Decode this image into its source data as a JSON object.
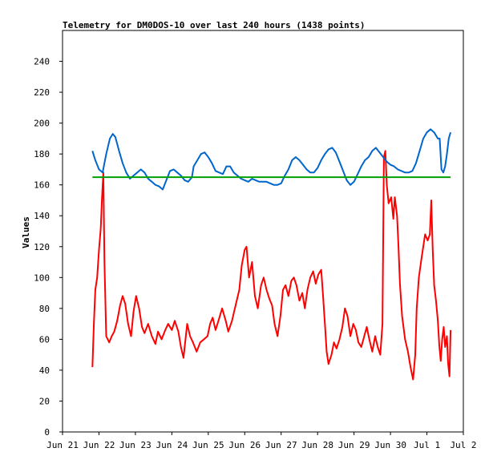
{
  "chart_data": {
    "type": "line",
    "title": "Telemetry for DM0DOS-10 over last 240 hours (1438 points)",
    "ylabel": "Values",
    "xlabel": "",
    "ylim": [
      0,
      260
    ],
    "xlim": [
      0,
      11
    ],
    "yticks": [
      0,
      20,
      40,
      60,
      80,
      100,
      120,
      140,
      160,
      180,
      200,
      220,
      240
    ],
    "xticks": [
      {
        "x": 0,
        "label": "Jun 21"
      },
      {
        "x": 1,
        "label": "Jun 22"
      },
      {
        "x": 2,
        "label": "Jun 23"
      },
      {
        "x": 3,
        "label": "Jun 24"
      },
      {
        "x": 4,
        "label": "Jun 25"
      },
      {
        "x": 5,
        "label": "Jun 26"
      },
      {
        "x": 6,
        "label": "Jun 27"
      },
      {
        "x": 7,
        "label": "Jun 28"
      },
      {
        "x": 8,
        "label": "Jun 29"
      },
      {
        "x": 9,
        "label": "Jun 30"
      },
      {
        "x": 10,
        "label": "Jul 1"
      },
      {
        "x": 11,
        "label": "Jul 2"
      }
    ],
    "grid": false,
    "series": [
      {
        "color": "#ff0000",
        "points": [
          [
            0.82,
            42
          ],
          [
            0.86,
            70
          ],
          [
            0.9,
            92
          ],
          [
            0.95,
            100
          ],
          [
            1.0,
            118
          ],
          [
            1.05,
            132
          ],
          [
            1.08,
            150
          ],
          [
            1.12,
            168
          ],
          [
            1.15,
            110
          ],
          [
            1.2,
            62
          ],
          [
            1.28,
            58
          ],
          [
            1.35,
            62
          ],
          [
            1.42,
            65
          ],
          [
            1.5,
            72
          ],
          [
            1.58,
            82
          ],
          [
            1.65,
            88
          ],
          [
            1.72,
            83
          ],
          [
            1.8,
            70
          ],
          [
            1.88,
            62
          ],
          [
            1.95,
            78
          ],
          [
            2.02,
            88
          ],
          [
            2.1,
            80
          ],
          [
            2.18,
            68
          ],
          [
            2.25,
            64
          ],
          [
            2.35,
            70
          ],
          [
            2.45,
            62
          ],
          [
            2.55,
            57
          ],
          [
            2.62,
            65
          ],
          [
            2.72,
            60
          ],
          [
            2.82,
            66
          ],
          [
            2.9,
            70
          ],
          [
            3.0,
            66
          ],
          [
            3.08,
            72
          ],
          [
            3.18,
            65
          ],
          [
            3.25,
            55
          ],
          [
            3.32,
            48
          ],
          [
            3.42,
            70
          ],
          [
            3.5,
            62
          ],
          [
            3.58,
            58
          ],
          [
            3.68,
            52
          ],
          [
            3.78,
            58
          ],
          [
            3.88,
            60
          ],
          [
            3.98,
            62
          ],
          [
            4.05,
            70
          ],
          [
            4.12,
            74
          ],
          [
            4.2,
            66
          ],
          [
            4.28,
            72
          ],
          [
            4.38,
            80
          ],
          [
            4.48,
            72
          ],
          [
            4.55,
            65
          ],
          [
            4.65,
            72
          ],
          [
            4.75,
            82
          ],
          [
            4.85,
            92
          ],
          [
            4.92,
            108
          ],
          [
            5.0,
            118
          ],
          [
            5.05,
            120
          ],
          [
            5.12,
            100
          ],
          [
            5.2,
            110
          ],
          [
            5.28,
            88
          ],
          [
            5.36,
            80
          ],
          [
            5.45,
            95
          ],
          [
            5.52,
            100
          ],
          [
            5.6,
            92
          ],
          [
            5.68,
            86
          ],
          [
            5.75,
            82
          ],
          [
            5.82,
            70
          ],
          [
            5.9,
            62
          ],
          [
            5.98,
            75
          ],
          [
            6.05,
            92
          ],
          [
            6.12,
            95
          ],
          [
            6.2,
            88
          ],
          [
            6.28,
            98
          ],
          [
            6.35,
            100
          ],
          [
            6.42,
            95
          ],
          [
            6.5,
            85
          ],
          [
            6.58,
            90
          ],
          [
            6.65,
            80
          ],
          [
            6.72,
            92
          ],
          [
            6.8,
            100
          ],
          [
            6.88,
            104
          ],
          [
            6.95,
            96
          ],
          [
            7.02,
            102
          ],
          [
            7.1,
            105
          ],
          [
            7.15,
            88
          ],
          [
            7.2,
            70
          ],
          [
            7.25,
            52
          ],
          [
            7.3,
            44
          ],
          [
            7.38,
            50
          ],
          [
            7.45,
            58
          ],
          [
            7.52,
            54
          ],
          [
            7.6,
            60
          ],
          [
            7.68,
            68
          ],
          [
            7.75,
            80
          ],
          [
            7.82,
            75
          ],
          [
            7.9,
            62
          ],
          [
            7.98,
            70
          ],
          [
            8.05,
            66
          ],
          [
            8.12,
            58
          ],
          [
            8.2,
            55
          ],
          [
            8.28,
            62
          ],
          [
            8.35,
            68
          ],
          [
            8.42,
            60
          ],
          [
            8.5,
            52
          ],
          [
            8.58,
            62
          ],
          [
            8.65,
            55
          ],
          [
            8.72,
            50
          ],
          [
            8.78,
            70
          ],
          [
            8.82,
            178
          ],
          [
            8.86,
            182
          ],
          [
            8.9,
            160
          ],
          [
            8.95,
            148
          ],
          [
            9.02,
            152
          ],
          [
            9.08,
            138
          ],
          [
            9.12,
            152
          ],
          [
            9.18,
            140
          ],
          [
            9.22,
            120
          ],
          [
            9.26,
            96
          ],
          [
            9.32,
            75
          ],
          [
            9.4,
            60
          ],
          [
            9.48,
            52
          ],
          [
            9.55,
            42
          ],
          [
            9.62,
            34
          ],
          [
            9.68,
            50
          ],
          [
            9.72,
            80
          ],
          [
            9.78,
            100
          ],
          [
            9.85,
            112
          ],
          [
            9.9,
            120
          ],
          [
            9.95,
            128
          ],
          [
            10.02,
            124
          ],
          [
            10.08,
            128
          ],
          [
            10.12,
            150
          ],
          [
            10.16,
            118
          ],
          [
            10.2,
            95
          ],
          [
            10.25,
            85
          ],
          [
            10.3,
            72
          ],
          [
            10.34,
            56
          ],
          [
            10.38,
            46
          ],
          [
            10.42,
            60
          ],
          [
            10.46,
            68
          ],
          [
            10.5,
            55
          ],
          [
            10.55,
            62
          ],
          [
            10.58,
            45
          ],
          [
            10.62,
            36
          ],
          [
            10.65,
            66
          ]
        ]
      },
      {
        "color": "#0066cc",
        "points": [
          [
            0.82,
            182
          ],
          [
            0.9,
            176
          ],
          [
            1.0,
            170
          ],
          [
            1.1,
            168
          ],
          [
            1.2,
            180
          ],
          [
            1.3,
            190
          ],
          [
            1.38,
            193
          ],
          [
            1.45,
            191
          ],
          [
            1.55,
            182
          ],
          [
            1.65,
            174
          ],
          [
            1.75,
            168
          ],
          [
            1.85,
            164
          ],
          [
            1.95,
            166
          ],
          [
            2.05,
            168
          ],
          [
            2.15,
            170
          ],
          [
            2.25,
            168
          ],
          [
            2.35,
            164
          ],
          [
            2.45,
            162
          ],
          [
            2.55,
            160
          ],
          [
            2.65,
            159
          ],
          [
            2.75,
            157
          ],
          [
            2.85,
            163
          ],
          [
            2.95,
            169
          ],
          [
            3.05,
            170
          ],
          [
            3.15,
            168
          ],
          [
            3.25,
            166
          ],
          [
            3.35,
            163
          ],
          [
            3.45,
            162
          ],
          [
            3.55,
            165
          ],
          [
            3.6,
            172
          ],
          [
            3.7,
            176
          ],
          [
            3.8,
            180
          ],
          [
            3.9,
            181
          ],
          [
            4.0,
            178
          ],
          [
            4.1,
            174
          ],
          [
            4.2,
            169
          ],
          [
            4.3,
            168
          ],
          [
            4.4,
            167
          ],
          [
            4.5,
            172
          ],
          [
            4.6,
            172
          ],
          [
            4.7,
            168
          ],
          [
            4.8,
            166
          ],
          [
            4.9,
            164
          ],
          [
            5.0,
            163
          ],
          [
            5.1,
            162
          ],
          [
            5.2,
            164
          ],
          [
            5.3,
            163
          ],
          [
            5.4,
            162
          ],
          [
            5.5,
            162
          ],
          [
            5.6,
            162
          ],
          [
            5.7,
            161
          ],
          [
            5.8,
            160
          ],
          [
            5.9,
            160
          ],
          [
            6.0,
            161
          ],
          [
            6.1,
            166
          ],
          [
            6.2,
            170
          ],
          [
            6.3,
            176
          ],
          [
            6.4,
            178
          ],
          [
            6.5,
            176
          ],
          [
            6.6,
            173
          ],
          [
            6.7,
            170
          ],
          [
            6.8,
            168
          ],
          [
            6.9,
            168
          ],
          [
            7.0,
            171
          ],
          [
            7.1,
            176
          ],
          [
            7.2,
            180
          ],
          [
            7.3,
            183
          ],
          [
            7.4,
            184
          ],
          [
            7.5,
            181
          ],
          [
            7.6,
            175
          ],
          [
            7.7,
            169
          ],
          [
            7.8,
            163
          ],
          [
            7.9,
            160
          ],
          [
            8.0,
            162
          ],
          [
            8.1,
            167
          ],
          [
            8.2,
            172
          ],
          [
            8.3,
            176
          ],
          [
            8.4,
            178
          ],
          [
            8.5,
            182
          ],
          [
            8.6,
            184
          ],
          [
            8.7,
            181
          ],
          [
            8.8,
            178
          ],
          [
            8.9,
            175
          ],
          [
            9.0,
            173
          ],
          [
            9.1,
            172
          ],
          [
            9.2,
            170
          ],
          [
            9.3,
            169
          ],
          [
            9.4,
            168
          ],
          [
            9.5,
            168
          ],
          [
            9.6,
            169
          ],
          [
            9.7,
            174
          ],
          [
            9.8,
            182
          ],
          [
            9.9,
            190
          ],
          [
            10.0,
            194
          ],
          [
            10.1,
            196
          ],
          [
            10.2,
            194
          ],
          [
            10.3,
            190
          ],
          [
            10.35,
            190
          ],
          [
            10.4,
            170
          ],
          [
            10.45,
            168
          ],
          [
            10.5,
            172
          ],
          [
            10.55,
            180
          ],
          [
            10.6,
            190
          ],
          [
            10.65,
            194
          ]
        ]
      },
      {
        "color": "#00a000",
        "points": [
          [
            0.82,
            165
          ],
          [
            10.65,
            165
          ]
        ]
      }
    ]
  }
}
